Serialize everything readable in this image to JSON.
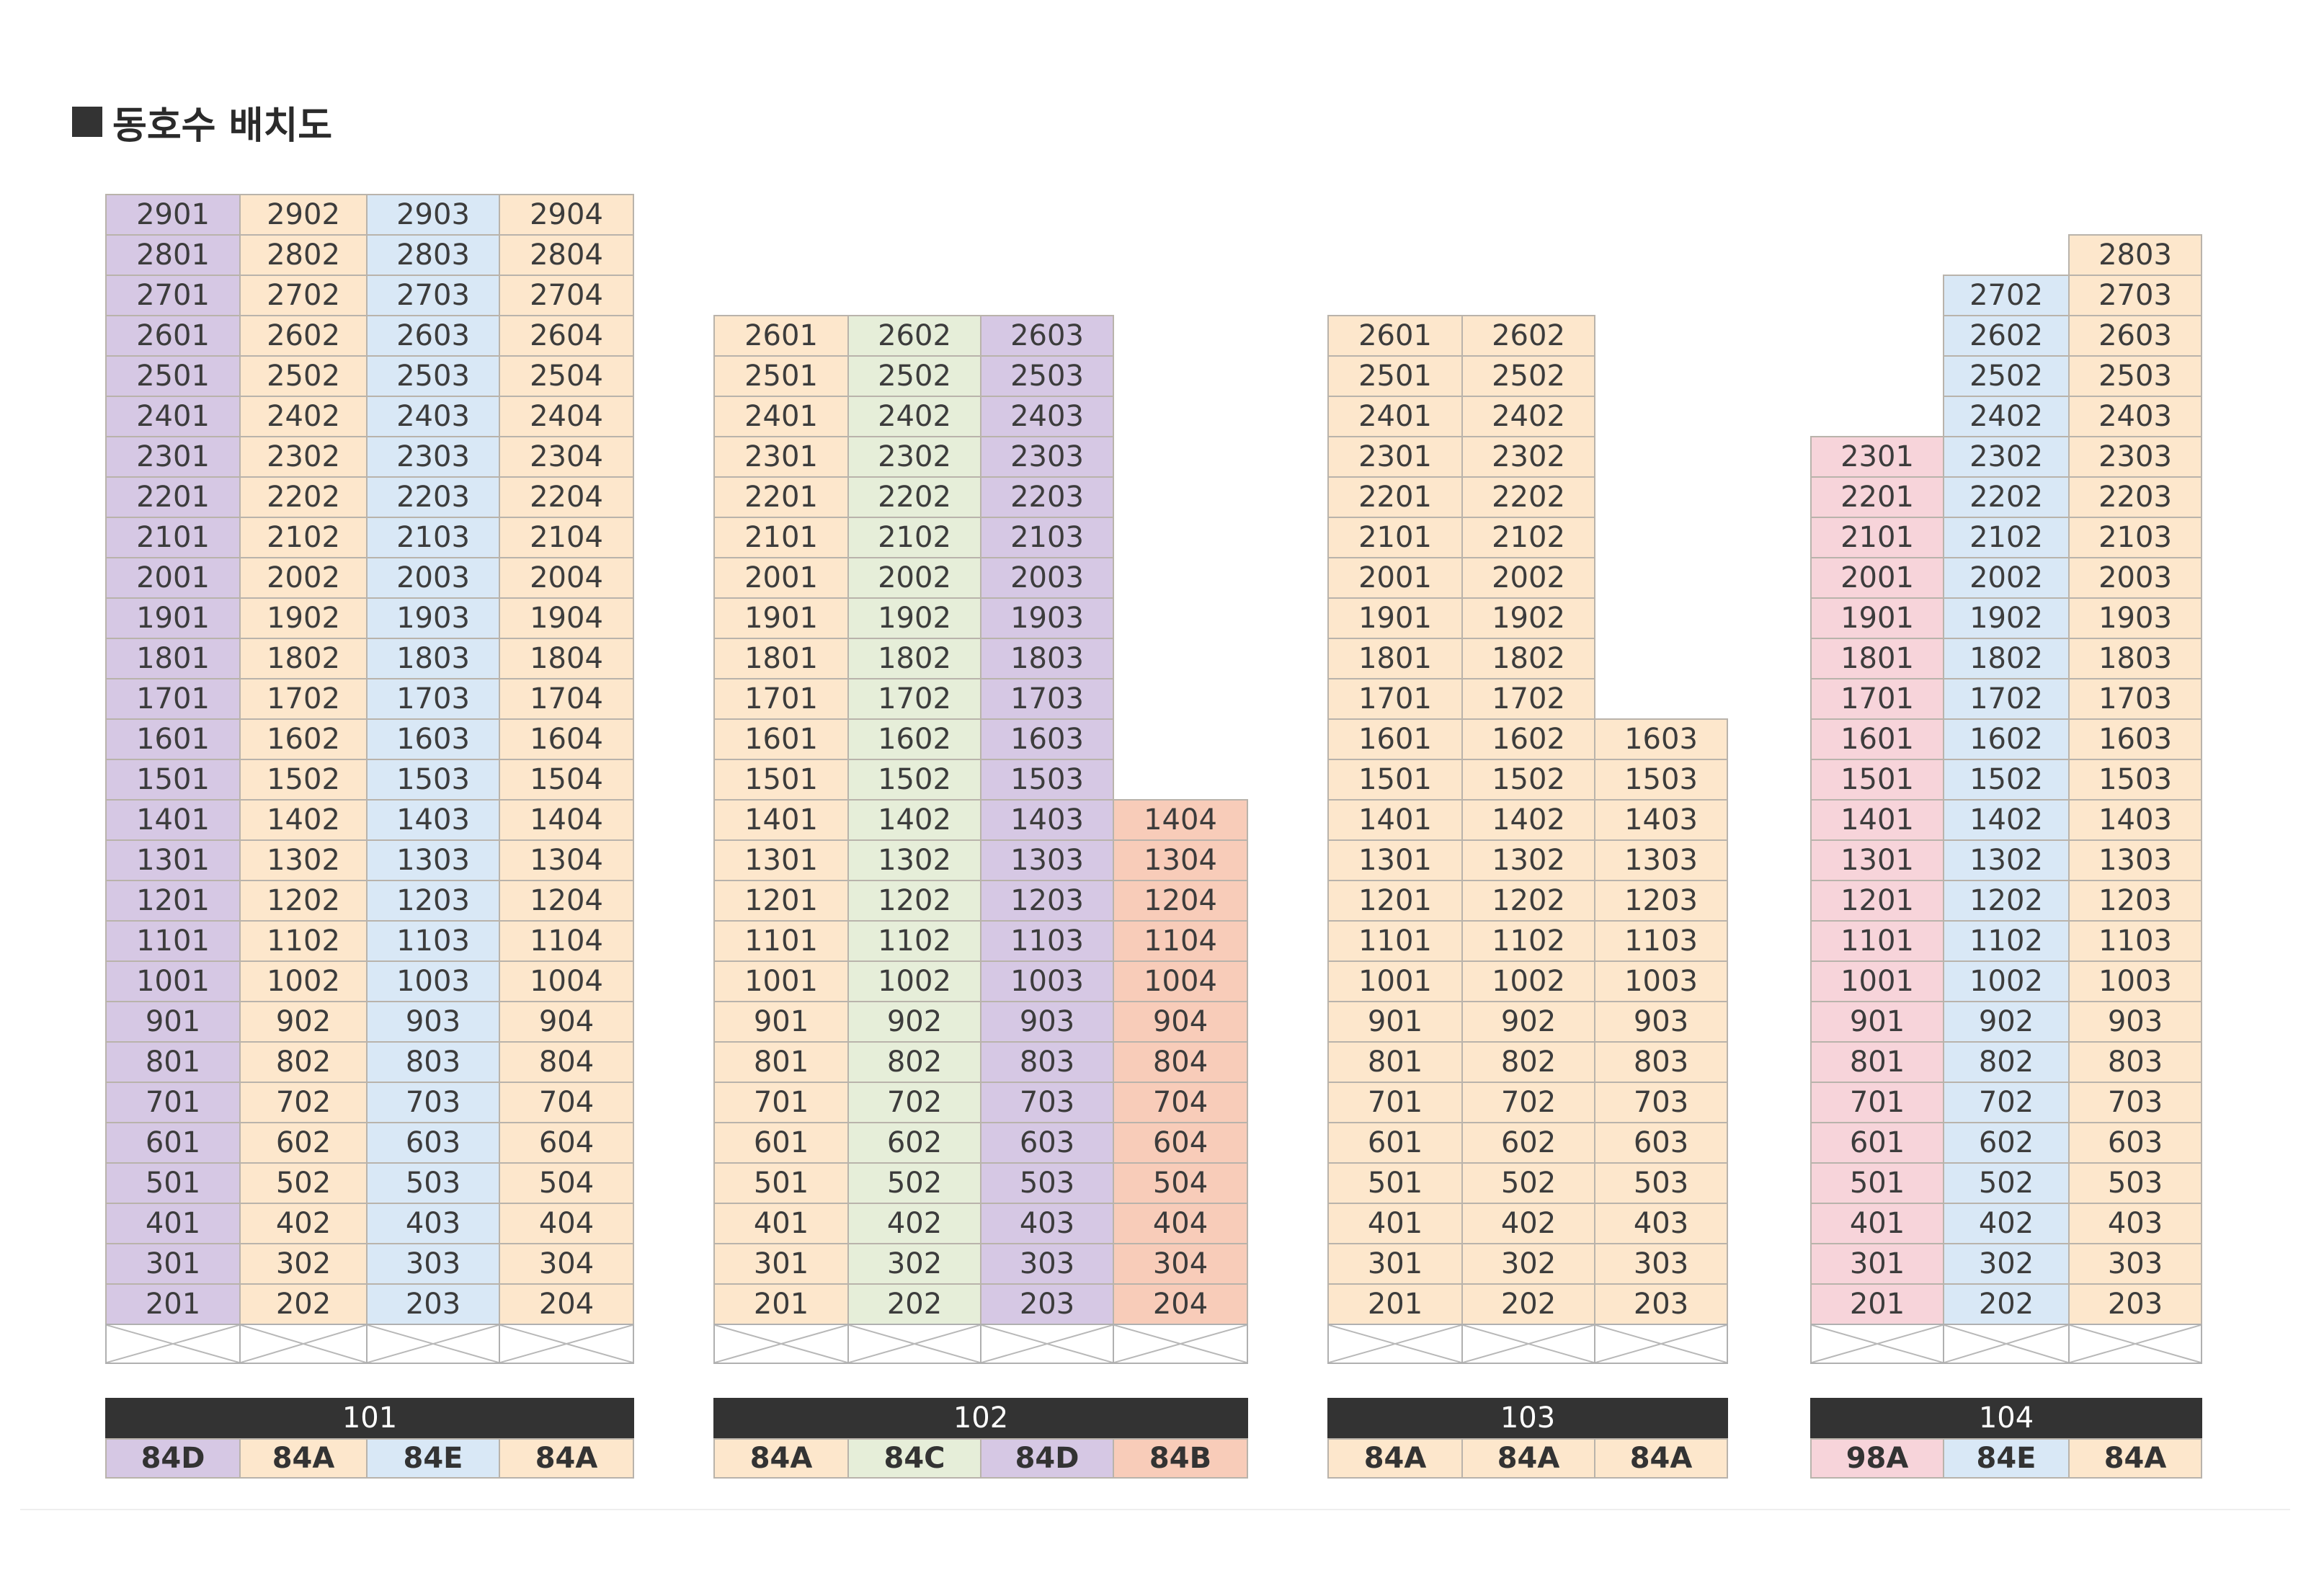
{
  "title": "동호수 배치도",
  "colors": {
    "84A": "#fde7cc",
    "84C": "#e6eed9",
    "84D": "#d6c8e4",
    "84E": "#d9e8f6",
    "84B": "#f8ccb9",
    "98A": "#f7d4da"
  },
  "buildings": [
    {
      "name": "101",
      "lines": [
        {
          "line": "01",
          "type": "84D",
          "top_floor": 29
        },
        {
          "line": "02",
          "type": "84A",
          "top_floor": 29
        },
        {
          "line": "03",
          "type": "84E",
          "top_floor": 29
        },
        {
          "line": "04",
          "type": "84A",
          "top_floor": 29
        }
      ]
    },
    {
      "name": "102",
      "lines": [
        {
          "line": "01",
          "type": "84A",
          "top_floor": 26
        },
        {
          "line": "02",
          "type": "84C",
          "top_floor": 26
        },
        {
          "line": "03",
          "type": "84D",
          "top_floor": 26
        },
        {
          "line": "04",
          "type": "84B",
          "top_floor": 14
        }
      ]
    },
    {
      "name": "103",
      "lines": [
        {
          "line": "01",
          "type": "84A",
          "top_floor": 26
        },
        {
          "line": "02",
          "type": "84A",
          "top_floor": 26
        },
        {
          "line": "03",
          "type": "84A",
          "top_floor": 16
        }
      ]
    },
    {
      "name": "104",
      "lines": [
        {
          "line": "01",
          "type": "98A",
          "top_floor": 23
        },
        {
          "line": "02",
          "type": "84E",
          "top_floor": 27
        },
        {
          "line": "03",
          "type": "84A",
          "top_floor": 28
        }
      ]
    }
  ]
}
